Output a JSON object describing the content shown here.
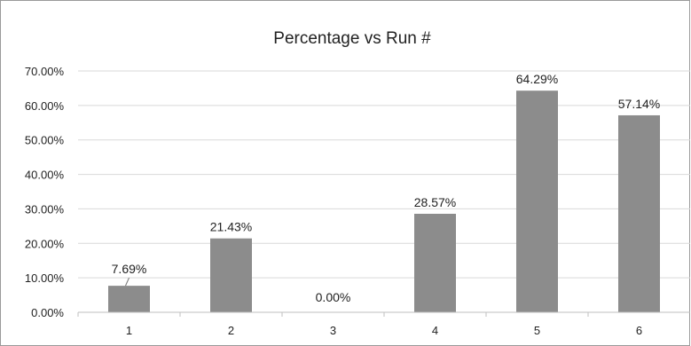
{
  "chart_data": {
    "type": "bar",
    "title": "Percentage vs Run #",
    "xlabel": "",
    "ylabel": "",
    "categories": [
      "1",
      "2",
      "3",
      "4",
      "5",
      "6"
    ],
    "values": [
      7.69,
      21.43,
      0.0,
      28.57,
      64.29,
      57.14
    ],
    "data_labels": [
      "7.69%",
      "21.43%",
      "0.00%",
      "28.57%",
      "64.29%",
      "57.14%"
    ],
    "ylim": [
      0,
      70
    ],
    "yticks": [
      0,
      10,
      20,
      30,
      40,
      50,
      60,
      70
    ],
    "ytick_labels": [
      "0.00%",
      "10.00%",
      "20.00%",
      "30.00%",
      "40.00%",
      "50.00%",
      "60.00%",
      "70.00%"
    ],
    "grid": true,
    "legend": "none",
    "bar_color": "#8c8c8c",
    "grid_color": "#d9d9d9"
  }
}
